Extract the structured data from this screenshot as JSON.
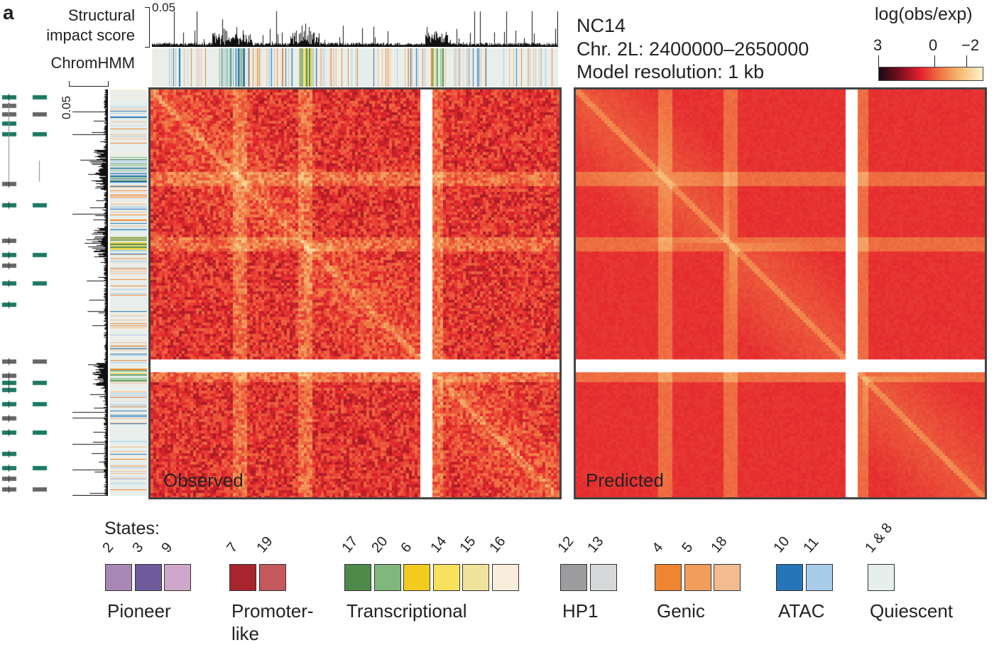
{
  "panel_letter": "a",
  "tracks": {
    "score_label": "Structural impact score",
    "score_scale": "0.05",
    "chromhmm_label": "ChromHMM",
    "left_score_scale": "0.05"
  },
  "info": {
    "stage": "NC14",
    "region": "Chr. 2L: 2400000–2650000",
    "resolution": "Model resolution: 1 kb"
  },
  "colorbar": {
    "title": "log(obs/exp)",
    "ticks": [
      "3",
      "0",
      "−2"
    ],
    "colors": [
      "#1a0a14",
      "#7a0f1e",
      "#e5202e",
      "#f07a45",
      "#f6c07a",
      "#fbf3cf"
    ]
  },
  "heatmaps": {
    "observed_label": "Observed",
    "predicted_label": "Predicted"
  },
  "legend": {
    "title": "States:",
    "groups": [
      {
        "name": "Pioneer",
        "states": [
          {
            "id": "2",
            "color": "#a887b4"
          },
          {
            "id": "3",
            "color": "#6f5a9b"
          },
          {
            "id": "9",
            "color": "#cfa7cb"
          }
        ]
      },
      {
        "name": "Promoter-like",
        "name_line1": "Promoter-",
        "name_line2": "like",
        "states": [
          {
            "id": "7",
            "color": "#a8252e"
          },
          {
            "id": "19",
            "color": "#c4585a"
          }
        ]
      },
      {
        "name": "Transcriptional",
        "states": [
          {
            "id": "17",
            "color": "#4e8a49"
          },
          {
            "id": "20",
            "color": "#7fb77d"
          },
          {
            "id": "6",
            "color": "#f2cb1f"
          },
          {
            "id": "14",
            "color": "#f7e15e"
          },
          {
            "id": "15",
            "color": "#efe39b"
          },
          {
            "id": "16",
            "color": "#f9eedc"
          }
        ]
      },
      {
        "name": "HP1",
        "states": [
          {
            "id": "12",
            "color": "#9c9c9e"
          },
          {
            "id": "13",
            "color": "#d6d8da"
          }
        ]
      },
      {
        "name": "Genic",
        "states": [
          {
            "id": "4",
            "color": "#ef8431"
          },
          {
            "id": "5",
            "color": "#f19e5c"
          },
          {
            "id": "18",
            "color": "#f2bc90"
          }
        ]
      },
      {
        "name": "ATAC",
        "states": [
          {
            "id": "10",
            "color": "#2575b8"
          },
          {
            "id": "11",
            "color": "#a8cdea"
          }
        ]
      },
      {
        "name": "Quiescent",
        "states": [
          {
            "id": "1 & 8",
            "color": "#e6efec"
          }
        ]
      }
    ]
  }
}
